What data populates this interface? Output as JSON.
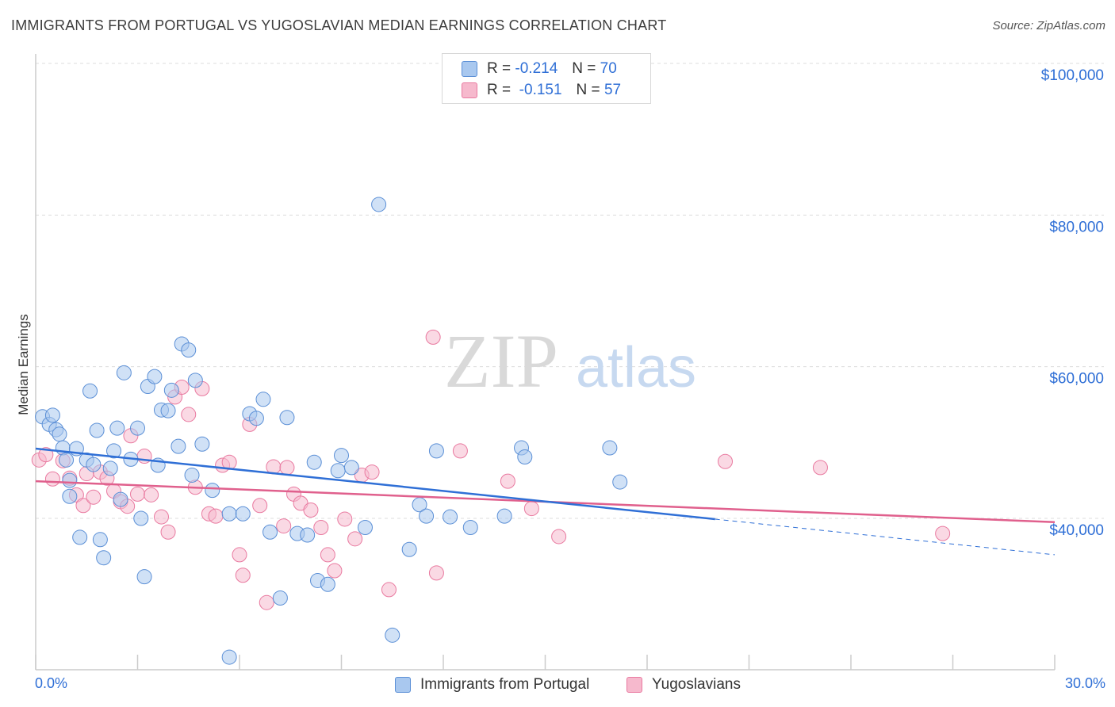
{
  "header": {
    "title": "IMMIGRANTS FROM PORTUGAL VS YUGOSLAVIAN MEDIAN EARNINGS CORRELATION CHART",
    "source": "Source: ZipAtlas.com"
  },
  "watermark": {
    "zip": "ZIP",
    "atlas": "atlas"
  },
  "legend_top": {
    "rows": [
      {
        "r_label": "R =",
        "r_value": "-0.214",
        "n_label": "N =",
        "n_value": "70"
      },
      {
        "r_label": "R =",
        "r_value": "-0.151",
        "n_label": "N =",
        "n_value": "57"
      }
    ]
  },
  "colors": {
    "portugal_fill": "#a9c8ef",
    "portugal_stroke": "#5b8fd6",
    "portugal_line": "#2f6fd6",
    "yugo_fill": "#f6b9cd",
    "yugo_stroke": "#e97aa0",
    "yugo_line": "#e0608d",
    "tick_label": "#2f6fd6",
    "grid": "#dcdcdc"
  },
  "chart_data": {
    "type": "scatter",
    "title": "IMMIGRANTS FROM PORTUGAL VS YUGOSLAVIAN MEDIAN EARNINGS CORRELATION CHART",
    "xlabel": "",
    "ylabel": "Median Earnings",
    "xlim": [
      0,
      30
    ],
    "ylim": [
      20000,
      102000
    ],
    "x_tick_labels": [
      "0.0%",
      "30.0%"
    ],
    "y_ticks": [
      40000,
      60000,
      80000,
      100000
    ],
    "y_tick_labels": [
      "$40,000",
      "$60,000",
      "$80,000",
      "$100,000"
    ],
    "grid": true,
    "legend_position": "bottom",
    "series": [
      {
        "name": "Immigrants from Portugal",
        "R": -0.214,
        "N": 70,
        "trend": {
          "x0": 0,
          "y0": 49200,
          "x1": 20,
          "y1": 39900,
          "dashed_to_x": 30,
          "dashed_to_y": 35200
        },
        "points": [
          [
            0.2,
            53400
          ],
          [
            0.4,
            52400
          ],
          [
            0.5,
            53600
          ],
          [
            0.6,
            51700
          ],
          [
            0.7,
            51100
          ],
          [
            0.8,
            49300
          ],
          [
            0.9,
            47700
          ],
          [
            1.0,
            45000
          ],
          [
            1.0,
            42900
          ],
          [
            1.2,
            49200
          ],
          [
            1.3,
            37500
          ],
          [
            1.5,
            47700
          ],
          [
            1.7,
            47100
          ],
          [
            1.6,
            56800
          ],
          [
            1.8,
            51600
          ],
          [
            1.9,
            37200
          ],
          [
            2.0,
            34800
          ],
          [
            2.2,
            46600
          ],
          [
            2.3,
            48900
          ],
          [
            2.4,
            51900
          ],
          [
            2.5,
            42500
          ],
          [
            2.6,
            59200
          ],
          [
            2.8,
            47800
          ],
          [
            3.0,
            51900
          ],
          [
            3.1,
            40000
          ],
          [
            3.2,
            32300
          ],
          [
            3.3,
            57400
          ],
          [
            3.5,
            58700
          ],
          [
            3.6,
            47000
          ],
          [
            3.7,
            54300
          ],
          [
            3.9,
            54200
          ],
          [
            4.0,
            56900
          ],
          [
            4.2,
            49500
          ],
          [
            4.3,
            63000
          ],
          [
            4.5,
            62200
          ],
          [
            4.6,
            45700
          ],
          [
            4.7,
            58200
          ],
          [
            4.9,
            49800
          ],
          [
            5.2,
            43700
          ],
          [
            5.7,
            40600
          ],
          [
            6.1,
            40600
          ],
          [
            6.3,
            53800
          ],
          [
            6.5,
            53200
          ],
          [
            6.7,
            55700
          ],
          [
            6.9,
            38200
          ],
          [
            7.2,
            29500
          ],
          [
            7.4,
            53300
          ],
          [
            7.7,
            38000
          ],
          [
            8.0,
            37800
          ],
          [
            8.2,
            47400
          ],
          [
            8.3,
            31800
          ],
          [
            8.6,
            31300
          ],
          [
            8.9,
            46300
          ],
          [
            9.0,
            48300
          ],
          [
            9.3,
            46700
          ],
          [
            9.7,
            38800
          ],
          [
            10.1,
            81400
          ],
          [
            10.5,
            24600
          ],
          [
            11.0,
            35900
          ],
          [
            11.3,
            41800
          ],
          [
            11.5,
            40300
          ],
          [
            11.8,
            48900
          ],
          [
            12.2,
            40200
          ],
          [
            12.8,
            38800
          ],
          [
            13.8,
            40300
          ],
          [
            14.3,
            49300
          ],
          [
            14.4,
            48100
          ],
          [
            16.9,
            49300
          ],
          [
            17.2,
            44800
          ],
          [
            5.7,
            21700
          ]
        ]
      },
      {
        "name": "Yugoslavians",
        "R": -0.151,
        "N": 57,
        "trend": {
          "x0": 0,
          "y0": 44900,
          "x1": 30,
          "y1": 39500
        },
        "points": [
          [
            0.1,
            47700
          ],
          [
            0.3,
            48400
          ],
          [
            0.5,
            45200
          ],
          [
            0.8,
            47600
          ],
          [
            1.0,
            45300
          ],
          [
            1.2,
            43100
          ],
          [
            1.4,
            41700
          ],
          [
            1.5,
            45900
          ],
          [
            1.7,
            42800
          ],
          [
            1.9,
            46100
          ],
          [
            2.1,
            45300
          ],
          [
            2.3,
            43600
          ],
          [
            2.5,
            42200
          ],
          [
            2.7,
            41600
          ],
          [
            2.8,
            50900
          ],
          [
            3.0,
            43200
          ],
          [
            3.2,
            48200
          ],
          [
            3.4,
            43100
          ],
          [
            3.7,
            40200
          ],
          [
            3.9,
            38200
          ],
          [
            4.1,
            56000
          ],
          [
            4.3,
            57300
          ],
          [
            4.5,
            53700
          ],
          [
            4.7,
            44100
          ],
          [
            4.9,
            57100
          ],
          [
            5.1,
            40600
          ],
          [
            5.3,
            40300
          ],
          [
            5.5,
            47000
          ],
          [
            5.7,
            47400
          ],
          [
            6.0,
            35200
          ],
          [
            6.1,
            32500
          ],
          [
            6.3,
            52400
          ],
          [
            6.6,
            41700
          ],
          [
            6.8,
            28900
          ],
          [
            7.0,
            46800
          ],
          [
            7.3,
            39000
          ],
          [
            7.4,
            46700
          ],
          [
            7.6,
            43200
          ],
          [
            7.8,
            42000
          ],
          [
            8.1,
            41100
          ],
          [
            8.4,
            38800
          ],
          [
            8.6,
            35200
          ],
          [
            8.8,
            33100
          ],
          [
            9.1,
            39900
          ],
          [
            9.4,
            37300
          ],
          [
            9.6,
            45700
          ],
          [
            9.9,
            46100
          ],
          [
            10.4,
            30600
          ],
          [
            11.7,
            63900
          ],
          [
            11.8,
            32800
          ],
          [
            12.5,
            48900
          ],
          [
            13.9,
            44900
          ],
          [
            14.6,
            41300
          ],
          [
            15.4,
            37600
          ],
          [
            20.3,
            47500
          ],
          [
            23.1,
            46700
          ],
          [
            26.7,
            38000
          ]
        ]
      }
    ]
  }
}
